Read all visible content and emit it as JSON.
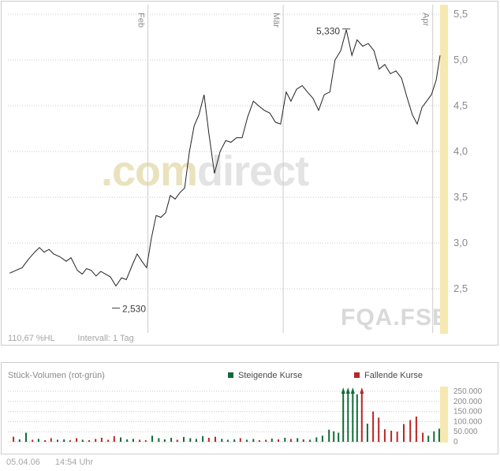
{
  "price_chart": {
    "watermark_prefix": ".com",
    "watermark_suffix": "direct",
    "symbol_watermark": "FQA.FSE",
    "footer": {
      "change": "110,67 %HL",
      "interval": "Intervall: 1 Tag"
    }
  },
  "volume_chart": {
    "title": "Stück-Volumen (rot-grün)",
    "legend": [
      {
        "label": "Steigende Kurse",
        "color": "#116b38"
      },
      {
        "label": "Fallende Kurse",
        "color": "#bb2525"
      }
    ]
  },
  "status_bar": {
    "date": "05.04.06",
    "time": "14:54 Uhr"
  },
  "colors": {
    "grid": "#c9c9c9",
    "axis_text": "#8a8a8a",
    "price_line": "#222222",
    "month_line": "#cccccc",
    "annotation_text": "#3c3c3c",
    "highlight_strip": "#f6e8b0",
    "up": "#116b38",
    "down": "#bb2525",
    "watermark_prefix": "#e9e2bd",
    "watermark_suffix": "#e3e3e3",
    "symbol_watermark": "#d9d9d9"
  },
  "chart_data": [
    {
      "type": "line",
      "name": "FQA.FSE",
      "y_unit": "EUR",
      "ylim": [
        2.5,
        5.5
      ],
      "ytick_step": 0.5,
      "yticks": [
        2.5,
        3.0,
        3.5,
        4.0,
        4.5,
        5.0,
        5.5
      ],
      "ytick_labels": [
        "2,5",
        "3,0",
        "3,5",
        "4,0",
        "4,5",
        "5,0",
        "5,5"
      ],
      "month_lines": [
        {
          "label": "Feb",
          "x": 0.324
        },
        {
          "label": "Mär",
          "x": 0.637
        },
        {
          "label": "Apr",
          "x": 0.983
        }
      ],
      "annotations": [
        {
          "label": "5,330",
          "x": 0.783,
          "y": 5.33,
          "placement": "above-left"
        },
        {
          "label": "2,530",
          "x": 0.25,
          "y": 2.53,
          "placement": "below-right"
        }
      ],
      "points": [
        [
          0.004,
          2.67
        ],
        [
          0.018,
          2.7
        ],
        [
          0.033,
          2.73
        ],
        [
          0.047,
          2.82
        ],
        [
          0.062,
          2.9
        ],
        [
          0.073,
          2.95
        ],
        [
          0.084,
          2.9
        ],
        [
          0.095,
          2.93
        ],
        [
          0.106,
          2.88
        ],
        [
          0.12,
          2.85
        ],
        [
          0.135,
          2.8
        ],
        [
          0.146,
          2.84
        ],
        [
          0.161,
          2.7
        ],
        [
          0.172,
          2.66
        ],
        [
          0.182,
          2.72
        ],
        [
          0.193,
          2.7
        ],
        [
          0.204,
          2.64
        ],
        [
          0.215,
          2.69
        ],
        [
          0.226,
          2.66
        ],
        [
          0.237,
          2.63
        ],
        [
          0.25,
          2.53
        ],
        [
          0.263,
          2.62
        ],
        [
          0.274,
          2.6
        ],
        [
          0.287,
          2.75
        ],
        [
          0.299,
          2.88
        ],
        [
          0.31,
          2.8
        ],
        [
          0.321,
          2.73
        ],
        [
          0.332,
          3.05
        ],
        [
          0.343,
          3.3
        ],
        [
          0.354,
          3.28
        ],
        [
          0.365,
          3.33
        ],
        [
          0.376,
          3.52
        ],
        [
          0.387,
          3.48
        ],
        [
          0.398,
          3.55
        ],
        [
          0.409,
          3.6
        ],
        [
          0.42,
          4.0
        ],
        [
          0.431,
          4.28
        ],
        [
          0.442,
          4.4
        ],
        [
          0.454,
          4.62
        ],
        [
          0.465,
          4.2
        ],
        [
          0.478,
          3.76
        ],
        [
          0.491,
          4.0
        ],
        [
          0.504,
          4.12
        ],
        [
          0.516,
          4.1
        ],
        [
          0.529,
          4.15
        ],
        [
          0.542,
          4.15
        ],
        [
          0.555,
          4.38
        ],
        [
          0.568,
          4.55
        ],
        [
          0.58,
          4.5
        ],
        [
          0.593,
          4.45
        ],
        [
          0.606,
          4.42
        ],
        [
          0.619,
          4.32
        ],
        [
          0.631,
          4.3
        ],
        [
          0.644,
          4.65
        ],
        [
          0.655,
          4.55
        ],
        [
          0.668,
          4.68
        ],
        [
          0.681,
          4.72
        ],
        [
          0.693,
          4.65
        ],
        [
          0.706,
          4.58
        ],
        [
          0.719,
          4.45
        ],
        [
          0.732,
          4.62
        ],
        [
          0.745,
          4.65
        ],
        [
          0.757,
          5.0
        ],
        [
          0.77,
          5.1
        ],
        [
          0.783,
          5.33
        ],
        [
          0.796,
          5.05
        ],
        [
          0.808,
          5.22
        ],
        [
          0.821,
          5.15
        ],
        [
          0.834,
          5.18
        ],
        [
          0.847,
          5.1
        ],
        [
          0.859,
          4.9
        ],
        [
          0.872,
          4.95
        ],
        [
          0.885,
          4.85
        ],
        [
          0.898,
          4.88
        ],
        [
          0.911,
          4.8
        ],
        [
          0.923,
          4.6
        ],
        [
          0.936,
          4.4
        ],
        [
          0.947,
          4.3
        ],
        [
          0.958,
          4.48
        ],
        [
          0.969,
          4.55
        ],
        [
          0.98,
          4.62
        ],
        [
          0.991,
          4.78
        ],
        [
          1.0,
          5.05
        ]
      ]
    },
    {
      "type": "bar",
      "name": "Stück-Volumen",
      "ylim": [
        0,
        250000
      ],
      "yticks": [
        0,
        50000,
        100000,
        150000,
        200000,
        250000
      ],
      "ytick_labels": [
        "0",
        "50.000",
        "100.000",
        "150.000",
        "200.000",
        "250.000"
      ],
      "bars": [
        [
          0.013,
          25000,
          "down"
        ],
        [
          0.027,
          12000,
          "up"
        ],
        [
          0.042,
          45000,
          "up"
        ],
        [
          0.057,
          10000,
          "down"
        ],
        [
          0.071,
          15000,
          "up"
        ],
        [
          0.086,
          8000,
          "down"
        ],
        [
          0.1,
          18000,
          "down"
        ],
        [
          0.115,
          10000,
          "up"
        ],
        [
          0.13,
          12000,
          "up"
        ],
        [
          0.144,
          8000,
          "down"
        ],
        [
          0.159,
          18000,
          "down"
        ],
        [
          0.173,
          10000,
          "up"
        ],
        [
          0.188,
          8000,
          "down"
        ],
        [
          0.203,
          14000,
          "down"
        ],
        [
          0.217,
          20000,
          "down"
        ],
        [
          0.232,
          10000,
          "down"
        ],
        [
          0.246,
          28000,
          "down"
        ],
        [
          0.261,
          22000,
          "up"
        ],
        [
          0.276,
          12000,
          "up"
        ],
        [
          0.29,
          15000,
          "up"
        ],
        [
          0.305,
          10000,
          "down"
        ],
        [
          0.319,
          8000,
          "down"
        ],
        [
          0.334,
          30000,
          "up"
        ],
        [
          0.349,
          18000,
          "up"
        ],
        [
          0.363,
          12000,
          "up"
        ],
        [
          0.378,
          20000,
          "up"
        ],
        [
          0.392,
          10000,
          "down"
        ],
        [
          0.407,
          24000,
          "up"
        ],
        [
          0.422,
          18000,
          "up"
        ],
        [
          0.436,
          14000,
          "up"
        ],
        [
          0.451,
          28000,
          "up"
        ],
        [
          0.465,
          20000,
          "down"
        ],
        [
          0.48,
          25000,
          "down"
        ],
        [
          0.495,
          15000,
          "up"
        ],
        [
          0.509,
          10000,
          "up"
        ],
        [
          0.524,
          12000,
          "up"
        ],
        [
          0.538,
          18000,
          "down"
        ],
        [
          0.553,
          10000,
          "up"
        ],
        [
          0.568,
          14000,
          "up"
        ],
        [
          0.582,
          8000,
          "down"
        ],
        [
          0.597,
          10000,
          "down"
        ],
        [
          0.611,
          16000,
          "up"
        ],
        [
          0.626,
          12000,
          "down"
        ],
        [
          0.641,
          20000,
          "up"
        ],
        [
          0.655,
          14000,
          "down"
        ],
        [
          0.67,
          18000,
          "up"
        ],
        [
          0.684,
          12000,
          "down"
        ],
        [
          0.699,
          10000,
          "up"
        ],
        [
          0.714,
          22000,
          "up"
        ],
        [
          0.728,
          30000,
          "up"
        ],
        [
          0.743,
          60000,
          "up"
        ],
        [
          0.754,
          52000,
          "up"
        ],
        [
          0.765,
          45000,
          "up"
        ],
        [
          0.776,
          255000,
          "up",
          1
        ],
        [
          0.787,
          255000,
          "up",
          1
        ],
        [
          0.798,
          255000,
          "up",
          1
        ],
        [
          0.808,
          235000,
          "up"
        ],
        [
          0.819,
          255000,
          "down",
          1
        ],
        [
          0.832,
          90000,
          "up"
        ],
        [
          0.845,
          150000,
          "down"
        ],
        [
          0.858,
          120000,
          "down"
        ],
        [
          0.872,
          62000,
          "down"
        ],
        [
          0.887,
          55000,
          "down"
        ],
        [
          0.901,
          50000,
          "down"
        ],
        [
          0.916,
          88000,
          "down"
        ],
        [
          0.931,
          108000,
          "down"
        ],
        [
          0.945,
          125000,
          "down"
        ],
        [
          0.96,
          45000,
          "down"
        ],
        [
          0.973,
          30000,
          "up"
        ],
        [
          0.986,
          52000,
          "up"
        ],
        [
          0.998,
          65000,
          "up"
        ]
      ]
    }
  ]
}
